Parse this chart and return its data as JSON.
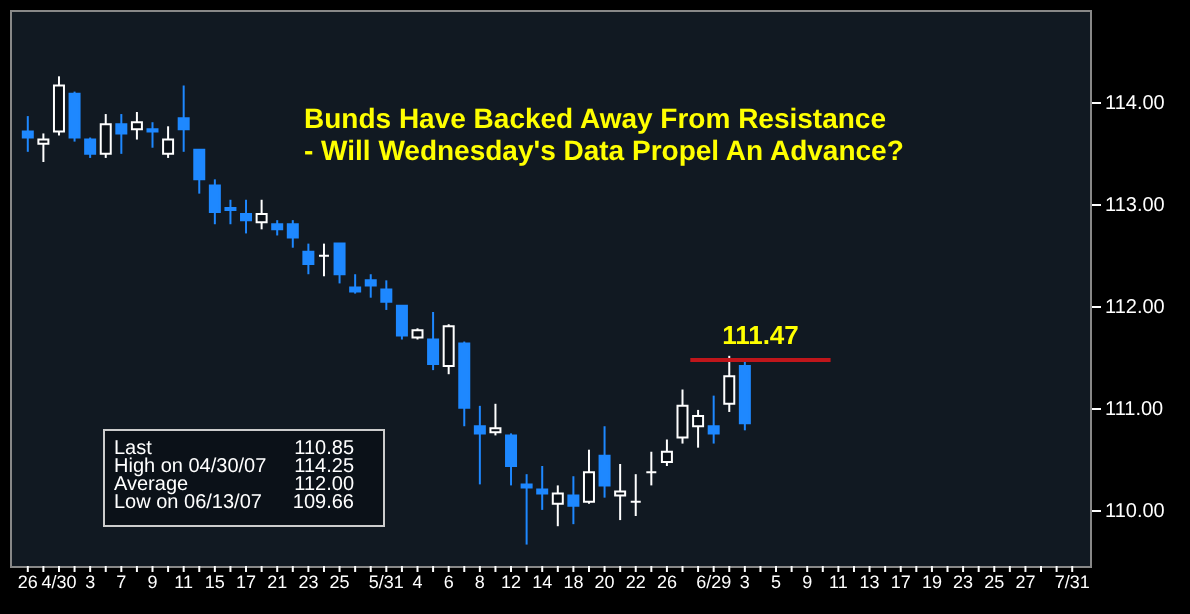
{
  "chart_data": {
    "type": "candlestick",
    "title": "Bunds Have Backed Away From Resistance",
    "subtitle": "- Will Wednesday's Data Propel An Advance?",
    "categories": [
      "26",
      null,
      "4/30",
      null,
      "3",
      null,
      "7",
      null,
      "9",
      null,
      "11",
      null,
      "15",
      null,
      "17",
      null,
      "21",
      null,
      "23",
      null,
      "25",
      null,
      null,
      "5/31",
      null,
      "4",
      null,
      "6",
      null,
      "8",
      null,
      "12",
      null,
      "14",
      null,
      "18",
      null,
      "20",
      null,
      "22",
      null,
      "26",
      null,
      null,
      "6/29",
      null,
      "3",
      null,
      "5",
      null,
      "9",
      null,
      "11",
      null,
      "13",
      null,
      "17",
      null,
      "19",
      null,
      "23",
      null,
      "25",
      null,
      "27",
      null,
      null,
      "7/31"
    ],
    "ohlc": [
      [
        113.71,
        113.86,
        113.51,
        113.65
      ],
      [
        113.59,
        113.69,
        113.41,
        113.63
      ],
      [
        113.71,
        114.25,
        113.67,
        114.16
      ],
      [
        114.08,
        114.1,
        113.61,
        113.65
      ],
      [
        113.63,
        113.65,
        113.45,
        113.49
      ],
      [
        113.49,
        113.88,
        113.45,
        113.78
      ],
      [
        113.78,
        113.88,
        113.49,
        113.69
      ],
      [
        113.73,
        113.9,
        113.63,
        113.8
      ],
      [
        113.73,
        113.8,
        113.55,
        113.71
      ],
      [
        113.49,
        113.76,
        113.45,
        113.63
      ],
      [
        113.84,
        114.16,
        113.51,
        113.73
      ],
      [
        113.53,
        113.53,
        113.1,
        113.24
      ],
      [
        113.18,
        113.24,
        112.8,
        112.92
      ],
      [
        112.96,
        113.04,
        112.8,
        112.94
      ],
      [
        112.9,
        113.04,
        112.71,
        112.84
      ],
      [
        112.82,
        113.04,
        112.75,
        112.9
      ],
      [
        112.8,
        112.84,
        112.69,
        112.75
      ],
      [
        112.8,
        112.84,
        112.57,
        112.67
      ],
      [
        112.53,
        112.61,
        112.31,
        112.41
      ],
      [
        112.49,
        112.61,
        112.29,
        112.49
      ],
      [
        112.61,
        112.61,
        112.22,
        112.31
      ],
      [
        112.18,
        112.31,
        112.12,
        112.14
      ],
      [
        112.25,
        112.31,
        112.08,
        112.2
      ],
      [
        112.16,
        112.25,
        111.96,
        112.04
      ],
      [
        112.0,
        112.0,
        111.67,
        111.71
      ],
      [
        111.69,
        111.78,
        111.67,
        111.76
      ],
      [
        111.67,
        111.94,
        111.37,
        111.43
      ],
      [
        111.41,
        111.82,
        111.33,
        111.8
      ],
      [
        111.63,
        111.65,
        110.82,
        111.0
      ],
      [
        110.82,
        111.02,
        110.25,
        110.75
      ],
      [
        110.76,
        111.04,
        110.73,
        110.8
      ],
      [
        110.73,
        110.75,
        110.24,
        110.43
      ],
      [
        110.25,
        110.35,
        109.66,
        110.22
      ],
      [
        110.2,
        110.43,
        110.0,
        110.16
      ],
      [
        110.06,
        110.24,
        109.84,
        110.16
      ],
      [
        110.14,
        110.33,
        109.86,
        110.04
      ],
      [
        110.08,
        110.59,
        110.06,
        110.37
      ],
      [
        110.53,
        110.82,
        110.12,
        110.24
      ],
      [
        110.14,
        110.45,
        109.9,
        110.18
      ],
      [
        110.08,
        110.35,
        109.94,
        110.08
      ],
      [
        110.37,
        110.57,
        110.24,
        110.37
      ],
      [
        110.47,
        110.69,
        110.43,
        110.57
      ],
      [
        110.71,
        111.18,
        110.65,
        111.02
      ],
      [
        110.82,
        110.98,
        110.61,
        110.92
      ],
      [
        110.82,
        111.12,
        110.65,
        110.75
      ],
      [
        111.04,
        111.51,
        110.96,
        111.31
      ],
      [
        111.41,
        111.47,
        110.78,
        110.85
      ],
      null,
      null,
      null,
      null,
      null,
      null,
      null,
      null,
      null,
      null,
      null,
      null,
      null,
      null,
      null,
      null,
      null,
      null,
      null,
      null,
      null
    ],
    "colors": [
      "#1e88ff",
      "#ffffff",
      "#ffffff",
      "#1e88ff",
      "#1e88ff",
      "#ffffff",
      "#1e88ff",
      "#ffffff",
      "#1e88ff",
      "#ffffff",
      "#1e88ff",
      "#1e88ff",
      "#1e88ff",
      "#1e88ff",
      "#1e88ff",
      "#ffffff",
      "#1e88ff",
      "#1e88ff",
      "#1e88ff",
      "#ffffff",
      "#1e88ff",
      "#1e88ff",
      "#1e88ff",
      "#1e88ff",
      "#1e88ff",
      "#ffffff",
      "#1e88ff",
      "#ffffff",
      "#1e88ff",
      "#1e88ff",
      "#ffffff",
      "#1e88ff",
      "#1e88ff",
      "#1e88ff",
      "#ffffff",
      "#1e88ff",
      "#ffffff",
      "#1e88ff",
      "#ffffff",
      "#ffffff",
      "#ffffff",
      "#ffffff",
      "#ffffff",
      "#ffffff",
      "#1e88ff",
      "#ffffff",
      "#1e88ff",
      null,
      null,
      null,
      null,
      null,
      null,
      null,
      null,
      null,
      null,
      null,
      null,
      null,
      null,
      null,
      null,
      null,
      null,
      null,
      null,
      null
    ],
    "ylim": [
      109.45,
      114.9
    ],
    "yticks": [
      {
        "value": 110,
        "label": "110.00"
      },
      {
        "value": 111,
        "label": "111.00"
      },
      {
        "value": 112,
        "label": "112.00"
      },
      {
        "value": 113,
        "label": "113.00"
      },
      {
        "value": 114,
        "label": "114.00"
      }
    ],
    "ref_lines": [
      {
        "axis": "y",
        "value": 111.47,
        "label": "111.47",
        "color": "#c0161b"
      }
    ],
    "annotations": [
      "Last\t110.85",
      "High on  04/30/07\t114.25",
      "Average\t112.00",
      "Low on  06/13/07\t109.66"
    ],
    "grid": false
  }
}
